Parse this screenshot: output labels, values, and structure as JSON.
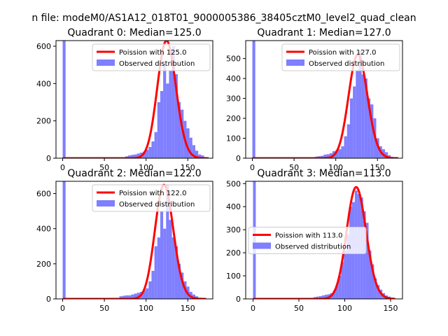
{
  "figure": {
    "suptitle": "n file: modeM0/AS1A12_018T01_9000005386_38405cztM0_level2_quad_clean"
  },
  "colors": {
    "hist": "#7f7fff",
    "fit": "#ff0000",
    "axis": "#000000"
  },
  "chart_data": [
    {
      "type": "bar",
      "title": "Quadrant 0: Median=125.0",
      "xlim": [
        -8,
        180
      ],
      "ylim": [
        0,
        630
      ],
      "xticks": [
        0,
        50,
        100,
        150
      ],
      "yticks": [
        0,
        200,
        400,
        600
      ],
      "legend_position": "upper-right",
      "series": [
        {
          "name": "Poission with 125.0",
          "kind": "line",
          "mean": 125.0,
          "peak": 630,
          "x_range": [
            0,
            175
          ]
        },
        {
          "name": "Observed distribution",
          "kind": "histogram",
          "bin_width": 3.5,
          "bars": [
            [
              0,
              630
            ],
            [
              75,
              10
            ],
            [
              78.5,
              15
            ],
            [
              82,
              18
            ],
            [
              85.5,
              20
            ],
            [
              89,
              25
            ],
            [
              92.5,
              30
            ],
            [
              96,
              35
            ],
            [
              99.5,
              45
            ],
            [
              103,
              60
            ],
            [
              106.5,
              90
            ],
            [
              110,
              140
            ],
            [
              113.5,
              300
            ],
            [
              117,
              360
            ],
            [
              120.5,
              500
            ],
            [
              124,
              400
            ],
            [
              127.5,
              470
            ],
            [
              131,
              600
            ],
            [
              134.5,
              450
            ],
            [
              138,
              300
            ],
            [
              141.5,
              260
            ],
            [
              145,
              200
            ],
            [
              148.5,
              160
            ],
            [
              152,
              110
            ],
            [
              155.5,
              70
            ],
            [
              159,
              40
            ],
            [
              162.5,
              20
            ],
            [
              166,
              15
            ]
          ]
        }
      ]
    },
    {
      "type": "bar",
      "title": "Quadrant 1: Median=127.0",
      "xlim": [
        -8,
        180
      ],
      "ylim": [
        0,
        590
      ],
      "xticks": [
        0,
        50,
        100,
        150
      ],
      "yticks": [
        0,
        100,
        200,
        300,
        400,
        500
      ],
      "legend_position": "upper-right",
      "series": [
        {
          "name": "Poission with 127.0",
          "kind": "line",
          "mean": 127.0,
          "peak": 520,
          "x_range": [
            0,
            175
          ]
        },
        {
          "name": "Observed distribution",
          "kind": "histogram",
          "bin_width": 3.5,
          "bars": [
            [
              0,
              590
            ],
            [
              75,
              8
            ],
            [
              78.5,
              10
            ],
            [
              82,
              12
            ],
            [
              85.5,
              18
            ],
            [
              89,
              20
            ],
            [
              92.5,
              25
            ],
            [
              96,
              35
            ],
            [
              99.5,
              40
            ],
            [
              103,
              45
            ],
            [
              106.5,
              60
            ],
            [
              110,
              110
            ],
            [
              113.5,
              170
            ],
            [
              117,
              300
            ],
            [
              120.5,
              360
            ],
            [
              124,
              440
            ],
            [
              127.5,
              540
            ],
            [
              131,
              420
            ],
            [
              134.5,
              400
            ],
            [
              138,
              300
            ],
            [
              141.5,
              270
            ],
            [
              145,
              200
            ],
            [
              148.5,
              100
            ],
            [
              152,
              60
            ],
            [
              155.5,
              45
            ],
            [
              159,
              30
            ],
            [
              162.5,
              15
            ]
          ]
        }
      ]
    },
    {
      "type": "bar",
      "title": "Quadrant 2: Median=122.0",
      "xlim": [
        -8,
        180
      ],
      "ylim": [
        0,
        670
      ],
      "xticks": [
        0,
        50,
        100,
        150
      ],
      "yticks": [
        0,
        200,
        400,
        600
      ],
      "legend_position": "upper-right",
      "series": [
        {
          "name": "Poission with 122.0",
          "kind": "line",
          "mean": 122.0,
          "peak": 650,
          "x_range": [
            0,
            172
          ]
        },
        {
          "name": "Observed distribution",
          "kind": "histogram",
          "bin_width": 3.5,
          "bars": [
            [
              0,
              670
            ],
            [
              68,
              15
            ],
            [
              71.5,
              18
            ],
            [
              75,
              20
            ],
            [
              78.5,
              20
            ],
            [
              82,
              25
            ],
            [
              85.5,
              30
            ],
            [
              89,
              35
            ],
            [
              92.5,
              40
            ],
            [
              96,
              50
            ],
            [
              99.5,
              60
            ],
            [
              103,
              100
            ],
            [
              106.5,
              160
            ],
            [
              110,
              300
            ],
            [
              113.5,
              350
            ],
            [
              117,
              500
            ],
            [
              120.5,
              400
            ],
            [
              124,
              650
            ],
            [
              127.5,
              450
            ],
            [
              131,
              350
            ],
            [
              134.5,
              300
            ],
            [
              138,
              200
            ],
            [
              141.5,
              150
            ],
            [
              145,
              100
            ],
            [
              148.5,
              70
            ],
            [
              152,
              40
            ],
            [
              155.5,
              25
            ],
            [
              159,
              15
            ]
          ]
        }
      ]
    },
    {
      "type": "bar",
      "title": "Quadrant 3: Median=113.0",
      "xlim": [
        -8,
        163
      ],
      "ylim": [
        0,
        510
      ],
      "xticks": [
        0,
        50,
        100,
        150
      ],
      "yticks": [
        0,
        100,
        200,
        300,
        400,
        500
      ],
      "legend_position": "center-left",
      "series": [
        {
          "name": "Poission with 113.0",
          "kind": "line",
          "mean": 113.0,
          "peak": 485,
          "x_range": [
            0,
            155
          ]
        },
        {
          "name": "Observed distribution",
          "kind": "histogram",
          "bin_width": 3.0,
          "bars": [
            [
              0,
              510
            ],
            [
              66,
              8
            ],
            [
              69,
              10
            ],
            [
              72,
              12
            ],
            [
              75,
              15
            ],
            [
              78,
              18
            ],
            [
              81,
              20
            ],
            [
              84,
              25
            ],
            [
              87,
              35
            ],
            [
              90,
              60
            ],
            [
              93,
              100
            ],
            [
              96,
              160
            ],
            [
              99,
              210
            ],
            [
              102,
              280
            ],
            [
              105,
              400
            ],
            [
              108,
              420
            ],
            [
              111,
              470
            ],
            [
              114,
              455
            ],
            [
              117,
              440
            ],
            [
              120,
              380
            ],
            [
              123,
              330
            ],
            [
              126,
              210
            ],
            [
              129,
              150
            ],
            [
              132,
              90
            ],
            [
              135,
              60
            ],
            [
              138,
              40
            ],
            [
              141,
              25
            ],
            [
              144,
              15
            ],
            [
              147,
              10
            ]
          ]
        }
      ]
    }
  ]
}
